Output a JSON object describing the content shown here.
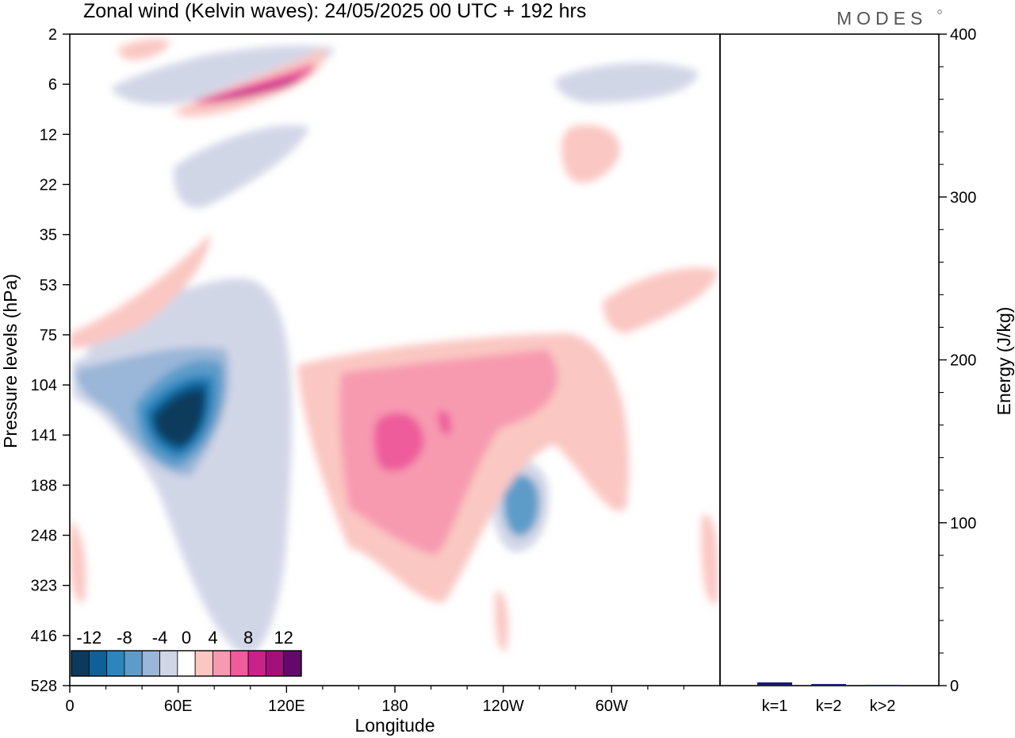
{
  "header": {
    "title": "Zonal wind (Kelvin waves):  24/05/2025  00 UTC  + 192 hrs",
    "brand": "MODES"
  },
  "chart_data": [
    {
      "type": "heatmap",
      "title": "Zonal wind (Kelvin waves):  24/05/2025  00 UTC  + 192 hrs",
      "xlabel": "Longitude",
      "ylabel": "Pressure levels (hPa)",
      "x_ticks": [
        "0",
        "60E",
        "120E",
        "180",
        "120W",
        "60W"
      ],
      "x_tick_values": [
        0,
        60,
        120,
        180,
        240,
        300
      ],
      "x_range": [
        0,
        360
      ],
      "y_ticks": [
        "2",
        "6",
        "12",
        "22",
        "35",
        "53",
        "75",
        "104",
        "141",
        "188",
        "248",
        "323",
        "416",
        "528"
      ],
      "y_scale": "reversed pressure levels, evenly spaced ticks",
      "grid": false,
      "colorbar": {
        "placement": "bottom-left inside plot",
        "labels": [
          "-12",
          "-8",
          "-4",
          "0",
          "4",
          "8",
          "12"
        ],
        "colors": [
          "#0b3a5c",
          "#0e6196",
          "#2b86bf",
          "#5d9cc9",
          "#9ab6d8",
          "#d1d6e7",
          "#ffffff",
          "#fac7c3",
          "#f79ab0",
          "#ee5c9b",
          "#c9228a",
          "#a4107a",
          "#65086d"
        ]
      },
      "features": [
        {
          "sign": "negative",
          "level": -16,
          "lon": 62,
          "lev": 7.8
        },
        {
          "sign": "negative",
          "level": -8,
          "lon": 30,
          "lev": 7.5
        },
        {
          "sign": "negative",
          "level": -8,
          "lon": 93,
          "lev": 10.4
        },
        {
          "sign": "negative",
          "level": -6,
          "lon": 245,
          "lev": 8.9
        },
        {
          "sign": "negative",
          "level": -4,
          "lon": 62,
          "lev": 0.6
        },
        {
          "sign": "negative",
          "level": -4,
          "lon": 95,
          "lev": 6.8
        },
        {
          "sign": "positive",
          "level": 6,
          "lon": 195,
          "lev": 8.0
        },
        {
          "sign": "positive",
          "level": 4,
          "lon": 200,
          "lev": 8.6
        },
        {
          "sign": "positive",
          "level": 4,
          "lon": 257,
          "lev": 6.9
        },
        {
          "sign": "positive",
          "level": 6,
          "lon": 100,
          "lev": 1.0
        },
        {
          "sign": "positive",
          "level": 2,
          "lon": 55,
          "lev": 5.0
        },
        {
          "sign": "positive",
          "level": 2,
          "lon": 305,
          "lev": 8.0
        }
      ]
    },
    {
      "type": "bar",
      "ylabel": "Energy (J/kg)",
      "categories": [
        "k=1",
        "k=2",
        "k>2"
      ],
      "values": [
        2,
        1,
        0.5
      ],
      "ylim": [
        0,
        400
      ],
      "y_ticks": [
        "0",
        "100",
        "200",
        "300",
        "400"
      ],
      "bar_color": "#1a1a6e"
    }
  ]
}
